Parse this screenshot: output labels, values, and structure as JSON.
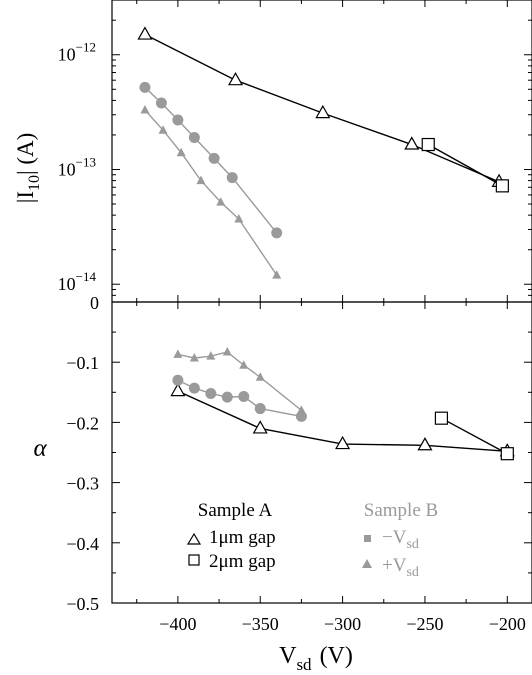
{
  "figure": {
    "xlabel_main": "V",
    "xlabel_sub": "sd",
    "xlabel_unit": "(V)"
  },
  "colors": {
    "sample_a": "#000000",
    "sample_b": "#9a9a9a",
    "axis": "#000000"
  },
  "chart_data": [
    {
      "type": "line",
      "panel": "top",
      "yscale": "log",
      "ylim": [
        7e-15,
        3e-12
      ],
      "xlim": [
        -440,
        -185
      ],
      "ylabel_main": "|I",
      "ylabel_sub": "10",
      "ylabel_tail": "| (A)",
      "yticks": [
        {
          "value": 1e-12,
          "base": "10",
          "exp": "−12"
        },
        {
          "value": 1e-13,
          "base": "10",
          "exp": "−13"
        },
        {
          "value": 1e-14,
          "base": "10",
          "exp": "−14"
        }
      ],
      "series": [
        {
          "marker": "open-triangle",
          "color": "#000000",
          "x": [
            -420,
            -365,
            -312,
            -258,
            -205
          ],
          "y": [
            1.5e-12,
            6e-13,
            3.1e-13,
            1.65e-13,
            7.8e-14
          ]
        },
        {
          "marker": "open-square",
          "color": "#000000",
          "x": [
            -248,
            -203
          ],
          "y": [
            1.65e-13,
            7.2e-14
          ]
        },
        {
          "marker": "filled-circle",
          "color": "#9a9a9a",
          "x": [
            -420,
            -410,
            -400,
            -390,
            -378,
            -367,
            -340
          ],
          "y": [
            5.2e-13,
            3.8e-13,
            2.7e-13,
            1.9e-13,
            1.25e-13,
            8.5e-14,
            2.8e-14
          ]
        },
        {
          "marker": "filled-triangle",
          "color": "#9a9a9a",
          "x": [
            -420,
            -409,
            -398,
            -386,
            -374,
            -363,
            -340
          ],
          "y": [
            3.3e-13,
            2.2e-13,
            1.4e-13,
            8e-14,
            5.2e-14,
            3.7e-14,
            1.2e-14
          ]
        }
      ]
    },
    {
      "type": "line",
      "panel": "bottom",
      "yscale": "linear",
      "ylim": [
        -0.5,
        0
      ],
      "xlim": [
        -440,
        -185
      ],
      "ylabel": "α",
      "yticks": [
        {
          "value": 0,
          "label": "0"
        },
        {
          "value": -0.1,
          "label": "−0.1"
        },
        {
          "value": -0.2,
          "label": "−0.2"
        },
        {
          "value": -0.3,
          "label": "−0.3"
        },
        {
          "value": -0.4,
          "label": "−0.4"
        },
        {
          "value": -0.5,
          "label": "−0.5"
        }
      ],
      "xticks": [
        {
          "value": -400,
          "label": "−400"
        },
        {
          "value": -350,
          "label": "−350"
        },
        {
          "value": -300,
          "label": "−300"
        },
        {
          "value": -250,
          "label": "−250"
        },
        {
          "value": -200,
          "label": "−200"
        }
      ],
      "series": [
        {
          "marker": "open-triangle",
          "color": "#000000",
          "x": [
            -400,
            -350,
            -300,
            -250,
            -200
          ],
          "y": [
            -0.148,
            -0.21,
            -0.236,
            -0.238,
            -0.248
          ]
        },
        {
          "marker": "open-square",
          "color": "#000000",
          "x": [
            -240,
            -200
          ],
          "y": [
            -0.193,
            -0.252
          ]
        },
        {
          "marker": "filled-circle",
          "color": "#9a9a9a",
          "x": [
            -400,
            -390,
            -380,
            -370,
            -360,
            -350,
            -325
          ],
          "y": [
            -0.13,
            -0.143,
            -0.152,
            -0.158,
            -0.157,
            -0.177,
            -0.19
          ]
        },
        {
          "marker": "filled-triangle",
          "color": "#9a9a9a",
          "x": [
            -400,
            -390,
            -380,
            -370,
            -360,
            -350,
            -325
          ],
          "y": [
            -0.087,
            -0.093,
            -0.09,
            -0.083,
            -0.105,
            -0.125,
            -0.18
          ]
        }
      ],
      "legend": {
        "position": "lower-center",
        "groups": [
          {
            "title": "Sample A",
            "color": "#000000",
            "entries": [
              {
                "marker": "open-triangle",
                "label": "1μm gap"
              },
              {
                "marker": "open-square",
                "label": "2μm gap"
              }
            ]
          },
          {
            "title": "Sample B",
            "color": "#9a9a9a",
            "entries": [
              {
                "marker": "filled-square",
                "label_sign": "−",
                "label_main": "V",
                "label_sub": "sd"
              },
              {
                "marker": "filled-triangle",
                "label_sign": "+",
                "label_main": "V",
                "label_sub": "sd"
              }
            ]
          }
        ]
      }
    }
  ]
}
